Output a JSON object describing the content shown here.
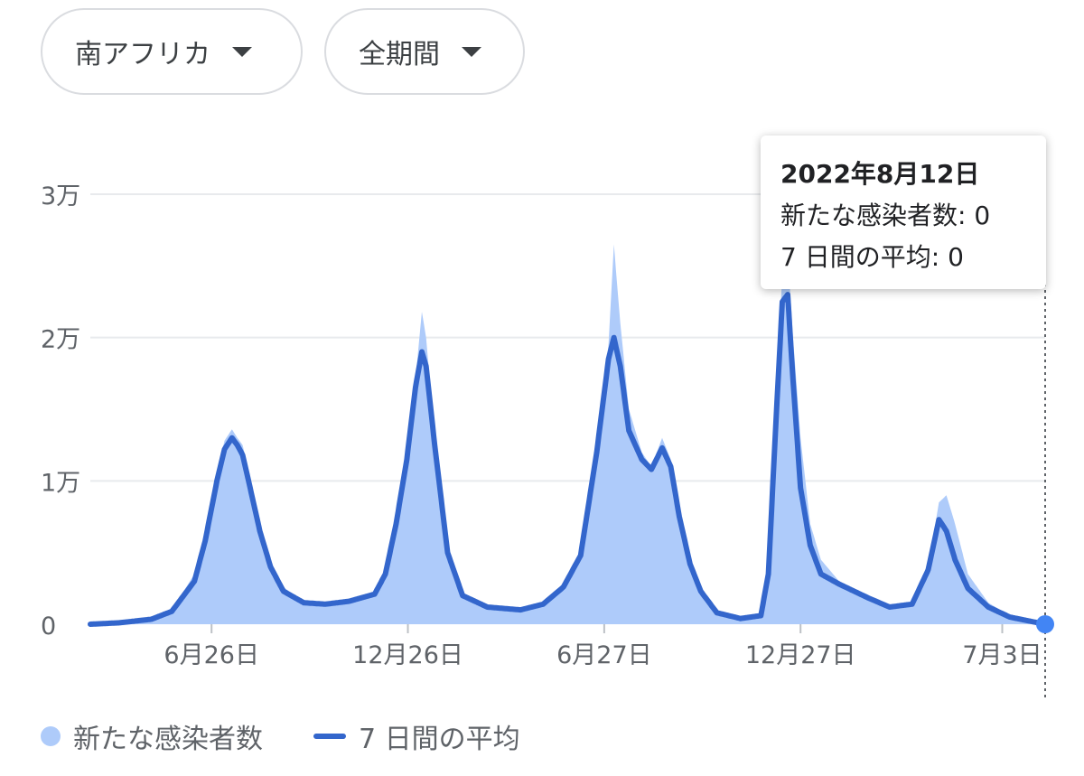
{
  "controls": {
    "region": "南アフリカ",
    "period": "全期間"
  },
  "tooltip": {
    "date": "2022年8月12日",
    "new_cases_label": "新たな感染者数",
    "new_cases_value": "0",
    "avg_label": "7 日間の平均",
    "avg_value": "0"
  },
  "legend": {
    "bars": "新たな感染者数",
    "line": "7 日間の平均"
  },
  "colors": {
    "bars": "#aecbfa",
    "line": "#3366cc",
    "marker": "#4285f4",
    "grid": "#e8eaed"
  },
  "chart_data": {
    "type": "area",
    "title": "",
    "xlabel": "",
    "ylabel": "",
    "y_ticks": [
      {
        "value": 0,
        "label": "0"
      },
      {
        "value": 10000,
        "label": "1万"
      },
      {
        "value": 20000,
        "label": "2万"
      },
      {
        "value": 30000,
        "label": "3万"
      }
    ],
    "ylim": [
      0,
      30000
    ],
    "x_range": [
      "2020-03-05",
      "2022-08-12"
    ],
    "x_ticks": [
      {
        "date": "2020-06-26",
        "label": "6月26日"
      },
      {
        "date": "2020-12-26",
        "label": "12月26日"
      },
      {
        "date": "2021-06-27",
        "label": "6月27日"
      },
      {
        "date": "2021-12-27",
        "label": "12月27日"
      },
      {
        "date": "2022-07-03",
        "label": "7月3日"
      }
    ],
    "highlight": {
      "date": "2022-08-12",
      "value": 0
    },
    "series": [
      {
        "name": "新たな感染者数",
        "style": "bars",
        "points": [
          [
            "2020-03-05",
            0
          ],
          [
            "2020-04-01",
            150
          ],
          [
            "2020-05-01",
            400
          ],
          [
            "2020-05-20",
            1000
          ],
          [
            "2020-06-10",
            3500
          ],
          [
            "2020-06-20",
            6500
          ],
          [
            "2020-07-01",
            10500
          ],
          [
            "2020-07-08",
            12800
          ],
          [
            "2020-07-15",
            13600
          ],
          [
            "2020-07-20",
            13000
          ],
          [
            "2020-07-25",
            12500
          ],
          [
            "2020-08-01",
            10200
          ],
          [
            "2020-08-10",
            7000
          ],
          [
            "2020-08-20",
            4300
          ],
          [
            "2020-09-01",
            2600
          ],
          [
            "2020-09-20",
            1500
          ],
          [
            "2020-10-10",
            1400
          ],
          [
            "2020-11-01",
            1600
          ],
          [
            "2020-11-25",
            2200
          ],
          [
            "2020-12-05",
            3800
          ],
          [
            "2020-12-15",
            7500
          ],
          [
            "2020-12-25",
            12000
          ],
          [
            "2021-01-02",
            17000
          ],
          [
            "2021-01-08",
            21800
          ],
          [
            "2021-01-12",
            20000
          ],
          [
            "2021-01-20",
            13000
          ],
          [
            "2021-02-01",
            5500
          ],
          [
            "2021-02-15",
            2200
          ],
          [
            "2021-03-10",
            1200
          ],
          [
            "2021-04-10",
            1100
          ],
          [
            "2021-05-01",
            1400
          ],
          [
            "2021-05-20",
            2700
          ],
          [
            "2021-06-05",
            5000
          ],
          [
            "2021-06-20",
            12500
          ],
          [
            "2021-07-01",
            19500
          ],
          [
            "2021-07-06",
            26500
          ],
          [
            "2021-07-12",
            21000
          ],
          [
            "2021-07-20",
            15000
          ],
          [
            "2021-08-01",
            12000
          ],
          [
            "2021-08-10",
            11000
          ],
          [
            "2021-08-20",
            13000
          ],
          [
            "2021-08-28",
            11500
          ],
          [
            "2021-09-05",
            8000
          ],
          [
            "2021-09-15",
            4500
          ],
          [
            "2021-09-25",
            2500
          ],
          [
            "2021-10-10",
            800
          ],
          [
            "2021-11-01",
            400
          ],
          [
            "2021-11-20",
            600
          ],
          [
            "2021-11-27",
            4000
          ],
          [
            "2021-12-05",
            16500
          ],
          [
            "2021-12-10",
            24500
          ],
          [
            "2021-12-15",
            26000
          ],
          [
            "2021-12-20",
            20000
          ],
          [
            "2021-12-27",
            13000
          ],
          [
            "2022-01-05",
            7000
          ],
          [
            "2022-01-15",
            4500
          ],
          [
            "2022-02-01",
            3000
          ],
          [
            "2022-03-01",
            2000
          ],
          [
            "2022-03-20",
            1300
          ],
          [
            "2022-04-10",
            1500
          ],
          [
            "2022-04-25",
            4000
          ],
          [
            "2022-05-05",
            8500
          ],
          [
            "2022-05-12",
            9000
          ],
          [
            "2022-05-20",
            7000
          ],
          [
            "2022-06-01",
            3500
          ],
          [
            "2022-06-20",
            1500
          ],
          [
            "2022-07-10",
            600
          ],
          [
            "2022-08-12",
            0
          ]
        ]
      },
      {
        "name": "7 日間の平均",
        "style": "line",
        "points": [
          [
            "2020-03-05",
            0
          ],
          [
            "2020-04-01",
            100
          ],
          [
            "2020-05-01",
            350
          ],
          [
            "2020-05-20",
            900
          ],
          [
            "2020-06-10",
            3000
          ],
          [
            "2020-06-20",
            5800
          ],
          [
            "2020-07-01",
            10000
          ],
          [
            "2020-07-08",
            12200
          ],
          [
            "2020-07-15",
            13000
          ],
          [
            "2020-07-20",
            12500
          ],
          [
            "2020-07-25",
            11800
          ],
          [
            "2020-08-01",
            9500
          ],
          [
            "2020-08-10",
            6500
          ],
          [
            "2020-08-20",
            4000
          ],
          [
            "2020-09-01",
            2300
          ],
          [
            "2020-09-20",
            1500
          ],
          [
            "2020-10-10",
            1400
          ],
          [
            "2020-11-01",
            1600
          ],
          [
            "2020-11-25",
            2100
          ],
          [
            "2020-12-05",
            3500
          ],
          [
            "2020-12-15",
            7000
          ],
          [
            "2020-12-25",
            11500
          ],
          [
            "2021-01-02",
            16500
          ],
          [
            "2021-01-08",
            19000
          ],
          [
            "2021-01-12",
            18000
          ],
          [
            "2021-01-20",
            12500
          ],
          [
            "2021-02-01",
            5000
          ],
          [
            "2021-02-15",
            2000
          ],
          [
            "2021-03-10",
            1200
          ],
          [
            "2021-04-10",
            1000
          ],
          [
            "2021-05-01",
            1400
          ],
          [
            "2021-05-20",
            2600
          ],
          [
            "2021-06-05",
            4800
          ],
          [
            "2021-06-20",
            12000
          ],
          [
            "2021-07-01",
            18500
          ],
          [
            "2021-07-06",
            20000
          ],
          [
            "2021-07-12",
            18000
          ],
          [
            "2021-07-20",
            13500
          ],
          [
            "2021-08-01",
            11500
          ],
          [
            "2021-08-10",
            10800
          ],
          [
            "2021-08-20",
            12300
          ],
          [
            "2021-08-28",
            11000
          ],
          [
            "2021-09-05",
            7500
          ],
          [
            "2021-09-15",
            4200
          ],
          [
            "2021-09-25",
            2300
          ],
          [
            "2021-10-10",
            800
          ],
          [
            "2021-11-01",
            400
          ],
          [
            "2021-11-20",
            600
          ],
          [
            "2021-11-27",
            3500
          ],
          [
            "2021-12-05",
            15500
          ],
          [
            "2021-12-10",
            22500
          ],
          [
            "2021-12-15",
            23000
          ],
          [
            "2021-12-20",
            17000
          ],
          [
            "2021-12-27",
            9500
          ],
          [
            "2022-01-05",
            5500
          ],
          [
            "2022-01-15",
            3500
          ],
          [
            "2022-02-01",
            2800
          ],
          [
            "2022-03-01",
            1800
          ],
          [
            "2022-03-20",
            1200
          ],
          [
            "2022-04-10",
            1400
          ],
          [
            "2022-04-25",
            3800
          ],
          [
            "2022-05-05",
            7300
          ],
          [
            "2022-05-12",
            6500
          ],
          [
            "2022-05-20",
            4500
          ],
          [
            "2022-06-01",
            2500
          ],
          [
            "2022-06-20",
            1200
          ],
          [
            "2022-07-10",
            500
          ],
          [
            "2022-08-12",
            0
          ]
        ]
      }
    ]
  }
}
